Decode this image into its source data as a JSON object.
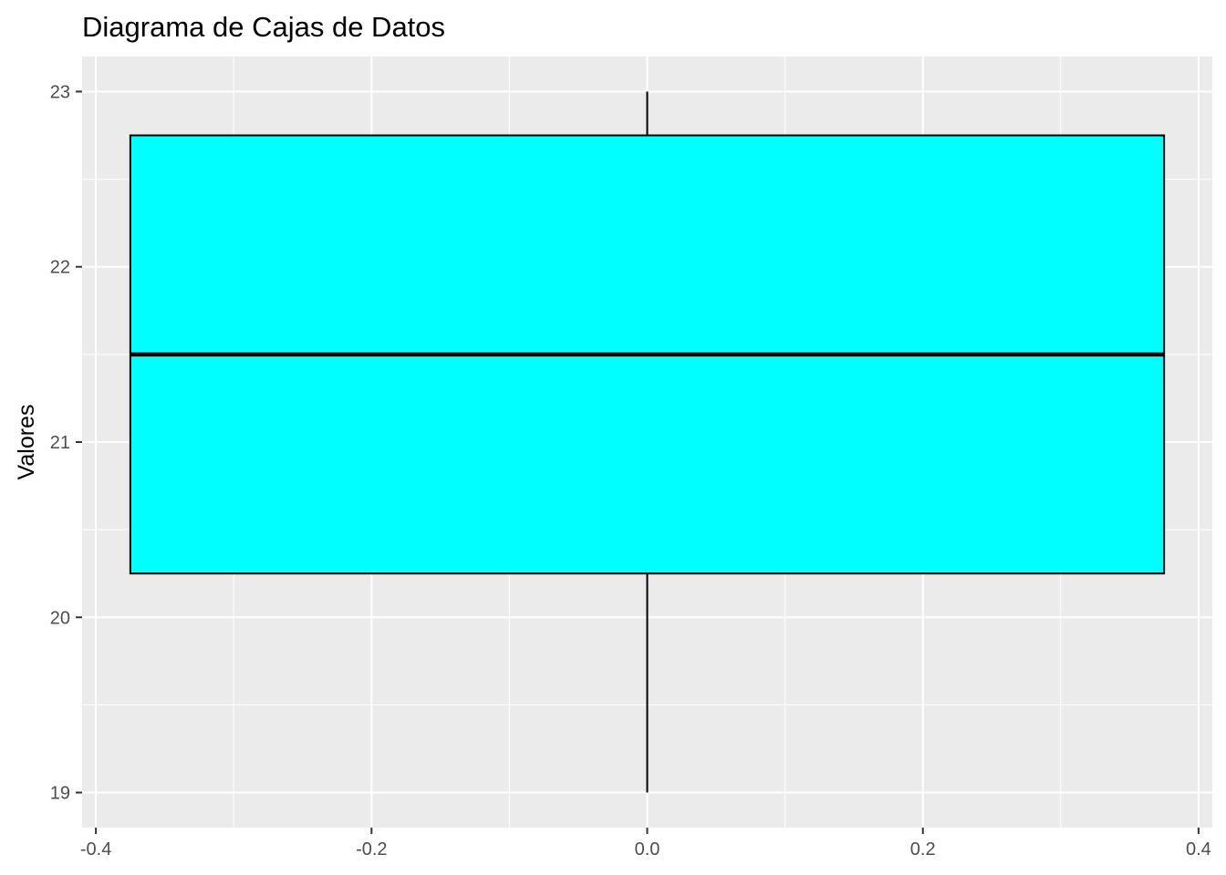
{
  "chart_data": {
    "type": "boxplot",
    "title": "Diagrama de Cajas de Datos",
    "xlabel": "",
    "ylabel": "Valores",
    "xlim": [
      -0.41,
      0.41
    ],
    "ylim": [
      18.8,
      23.2
    ],
    "x_ticks": [
      -0.4,
      -0.2,
      0.0,
      0.2,
      0.4
    ],
    "x_tick_labels": [
      "-0.4",
      "-0.2",
      "0.0",
      "0.2",
      "0.4"
    ],
    "y_ticks": [
      19,
      20,
      21,
      22,
      23
    ],
    "y_tick_labels": [
      "19",
      "20",
      "21",
      "22",
      "23"
    ],
    "grid": true,
    "box": {
      "x_center": 0.0,
      "x_min": -0.375,
      "x_max": 0.375,
      "whisker_low": 19,
      "q1": 20.25,
      "median": 21.5,
      "q3": 22.75,
      "whisker_high": 23
    },
    "colors": {
      "box_fill": "#00FFFF",
      "box_stroke": "#000000",
      "panel_bg": "#EBEBEB",
      "grid": "#FFFFFF"
    }
  }
}
